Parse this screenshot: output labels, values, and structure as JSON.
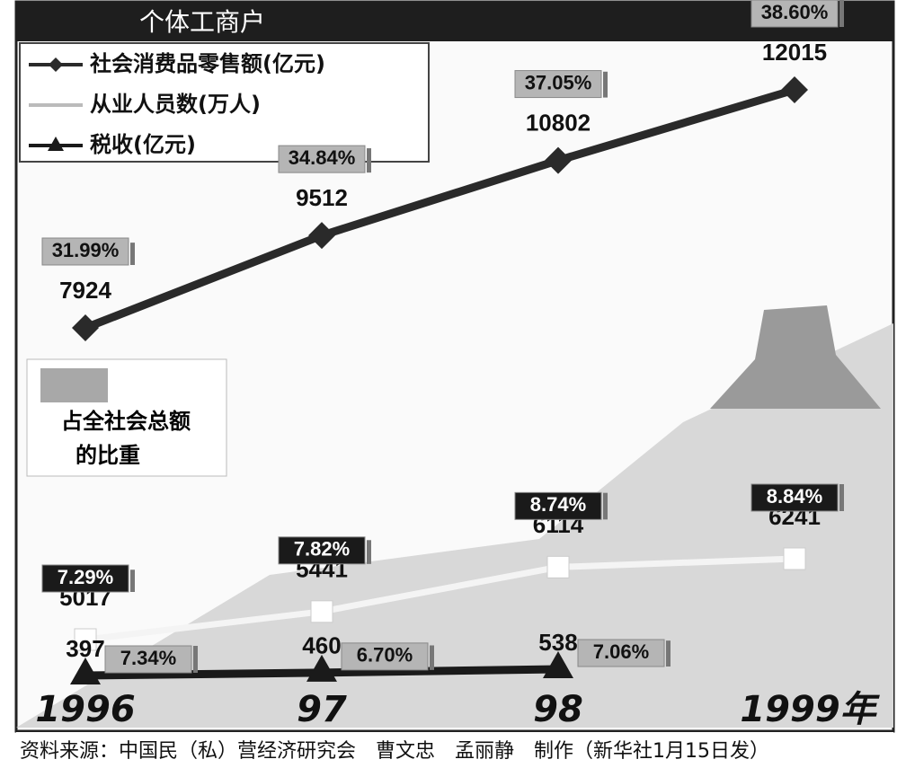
{
  "chart_data": {
    "type": "line",
    "title": "个体工商户",
    "categories": [
      "1996",
      "97",
      "98",
      "1999年"
    ],
    "legend": "top-left",
    "share_legend": [
      "占全社会总额",
      "的比重"
    ],
    "series": [
      {
        "name": "社会消费品零售额(亿元)",
        "color": "#2a2a2a",
        "marker": "diamond",
        "values": [
          7924,
          9512,
          10802,
          12015
        ],
        "shares": [
          31.99,
          34.84,
          37.05,
          38.6
        ],
        "share_labels": [
          "31.99%",
          "34.84%",
          "37.05%",
          "38.60%"
        ]
      },
      {
        "name": "从业人员数(万人)",
        "color": "#f4f4f4",
        "marker": "square",
        "values": [
          5017,
          5441,
          6114,
          6241
        ],
        "shares": [
          7.29,
          7.82,
          8.74,
          8.84
        ],
        "share_labels": [
          "7.29%",
          "7.82%",
          "8.74%",
          "8.84%"
        ]
      },
      {
        "name": "税收(亿元)",
        "color": "#1a1a1a",
        "marker": "triangle",
        "values": [
          397,
          460,
          538,
          null
        ],
        "shares": [
          7.34,
          6.7,
          7.06,
          null
        ],
        "share_labels": [
          "7.34%",
          "6.70%",
          "7.06%",
          null
        ]
      }
    ],
    "source": "资料来源：中国民（私）营经济研究会　曹文忠　孟丽静　制作（新华社1月15日发）"
  }
}
